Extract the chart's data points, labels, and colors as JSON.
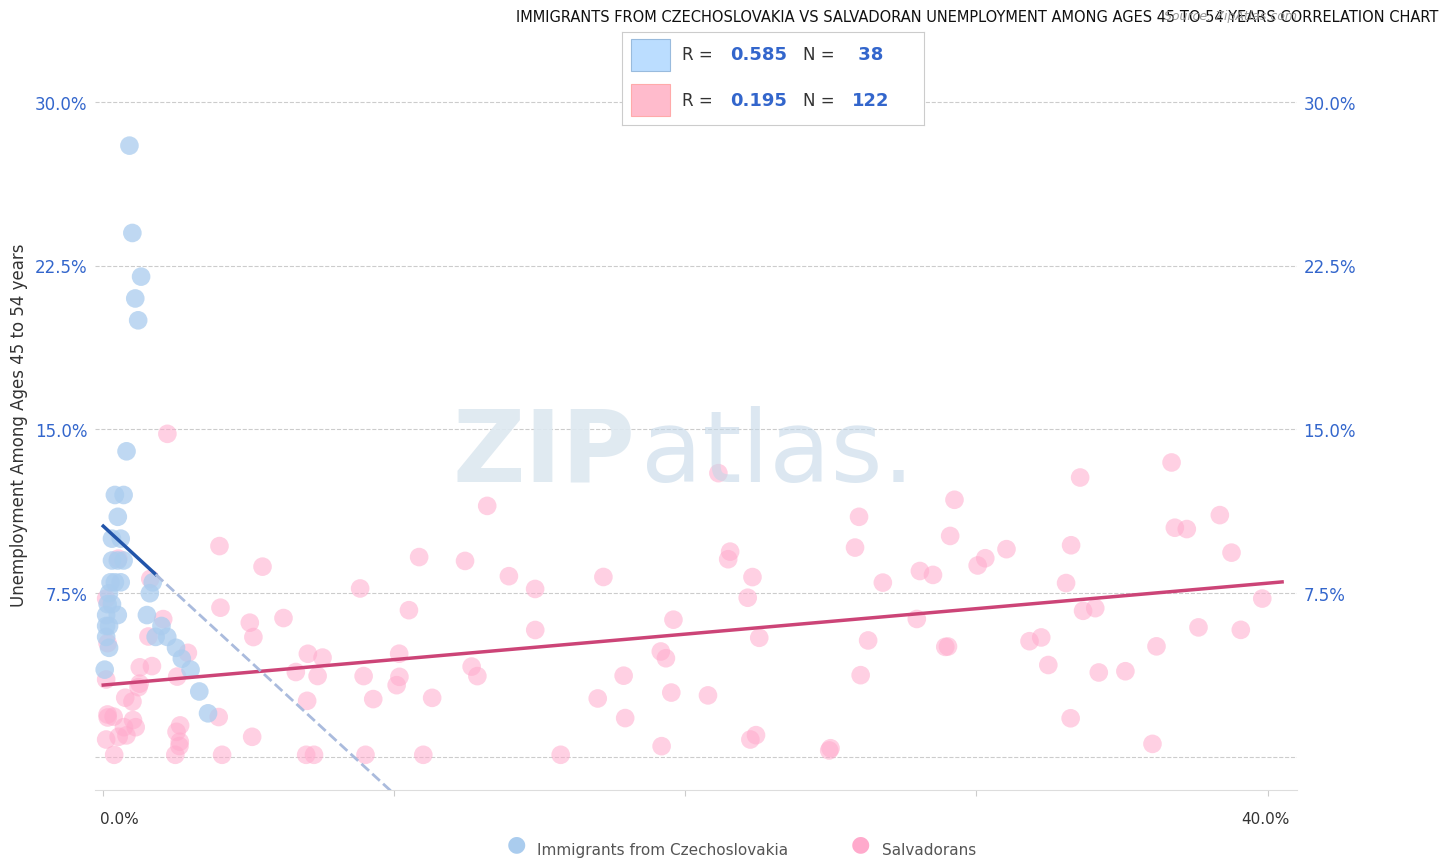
{
  "title": "IMMIGRANTS FROM CZECHOSLOVAKIA VS SALVADORAN UNEMPLOYMENT AMONG AGES 45 TO 54 YEARS CORRELATION CHART",
  "source": "Source: ZipAtlas.com",
  "ylabel": "Unemployment Among Ages 45 to 54 years",
  "ytick_values": [
    0.0,
    0.075,
    0.15,
    0.225,
    0.3
  ],
  "ytick_labels": [
    "",
    "7.5%",
    "15.0%",
    "22.5%",
    "30.0%"
  ],
  "xlim": [
    -0.003,
    0.41
  ],
  "ylim": [
    -0.015,
    0.32
  ],
  "color_blue": "#AACCEE",
  "color_pink": "#FFAACC",
  "color_blue_line": "#2255AA",
  "color_pink_line": "#CC4477",
  "color_blue_dash": "#AABBDD"
}
